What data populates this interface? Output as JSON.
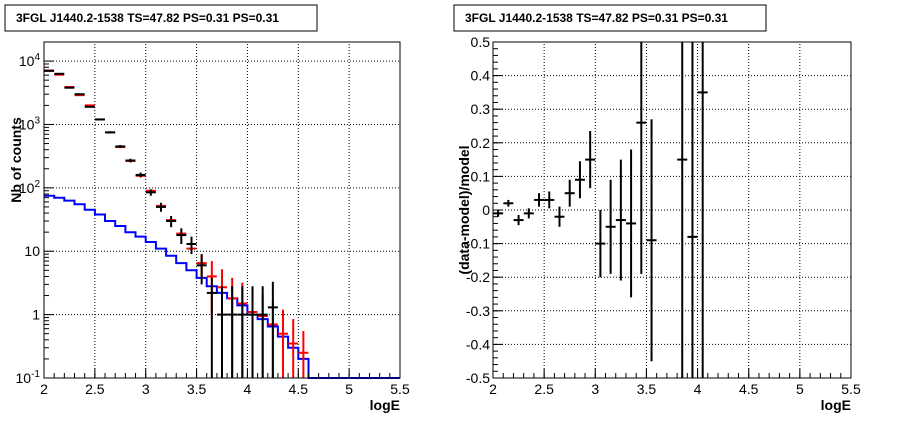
{
  "chart_data": [
    {
      "type": "line",
      "title": "3FGL J1440.2-1538 TS=47.82 PS=0.31 PS=0.31",
      "xlabel": "logE",
      "ylabel": "Nb of counts",
      "xlim": [
        2,
        5.5
      ],
      "ylim": [
        0.1,
        20000
      ],
      "yscale": "log",
      "grid": true,
      "x_ticks": [
        "2",
        "2.5",
        "3",
        "3.5",
        "4",
        "4.5",
        "5",
        "5.5"
      ],
      "y_ticks": [
        "10^{-1}",
        "1",
        "10",
        "10^{2}",
        "10^{3}",
        "10^{4}"
      ],
      "series": [
        {
          "role": "data",
          "color": "#000000",
          "x": [
            2.05,
            2.15,
            2.25,
            2.35,
            2.45,
            2.55,
            2.65,
            2.75,
            2.85,
            2.95,
            3.05,
            3.15,
            3.25,
            3.35,
            3.45,
            3.55,
            3.65,
            3.75,
            3.85,
            3.95,
            4.05,
            4.15,
            4.25
          ],
          "y": [
            7000,
            6300,
            3800,
            3000,
            1900,
            1200,
            750,
            450,
            270,
            160,
            85,
            50,
            30,
            18,
            13,
            6,
            2.2,
            1,
            1,
            1,
            1,
            1,
            1.3
          ],
          "err_lo": [
            100,
            90,
            70,
            60,
            50,
            40,
            30,
            25,
            18,
            14,
            10,
            8,
            6,
            5,
            4,
            3,
            2.19,
            0.99,
            0.99,
            0.99,
            0.99,
            0.99,
            1.29
          ],
          "err_hi": [
            100,
            90,
            70,
            60,
            50,
            40,
            30,
            25,
            18,
            14,
            10,
            8,
            6,
            5,
            4,
            3,
            1.6,
            1.8,
            1.8,
            1.8,
            1.8,
            1.8,
            2.0
          ]
        },
        {
          "role": "model",
          "color": "#ff0000",
          "x": [
            2.05,
            2.15,
            2.25,
            2.35,
            2.45,
            2.55,
            2.65,
            2.75,
            2.85,
            2.95,
            3.05,
            3.15,
            3.25,
            3.35,
            3.45,
            3.55,
            3.65,
            3.75,
            3.85,
            3.95,
            4.05,
            4.15,
            4.25,
            4.35,
            4.45,
            4.55
          ],
          "y": [
            7100,
            6100,
            3900,
            2900,
            2000,
            1200,
            750,
            440,
            265,
            155,
            90,
            52,
            31,
            19,
            11,
            6.5,
            4,
            2.7,
            1.8,
            1.5,
            1.1,
            0.95,
            0.7,
            0.5,
            0.35,
            0.25
          ],
          "err": [
            0.0,
            0.0,
            0.0,
            0.0,
            0.0,
            0.0,
            0.0,
            0.0,
            0.0,
            0.0,
            0.0,
            0.0,
            0.0,
            0.0,
            0.0,
            2.5,
            3,
            2.5,
            2,
            1.7,
            1.3,
            1.2,
            0.9,
            0.7,
            0.5,
            0.3
          ]
        },
        {
          "role": "background",
          "color": "#0000ff",
          "edges": [
            2.0,
            2.1,
            2.2,
            2.3,
            2.4,
            2.5,
            2.6,
            2.7,
            2.8,
            2.9,
            3.0,
            3.1,
            3.2,
            3.3,
            3.4,
            3.5,
            3.6,
            3.7,
            3.8,
            3.9,
            4.0,
            4.1,
            4.2,
            4.3,
            4.4,
            4.5,
            4.6,
            5.5
          ],
          "y": [
            75,
            70,
            63,
            55,
            45,
            38,
            30,
            25,
            20,
            17,
            14,
            11,
            8.5,
            6.5,
            5,
            3.8,
            2.8,
            2.2,
            1.8,
            1.4,
            1.0,
            0.85,
            0.65,
            0.45,
            0.3,
            0.2,
            0.1
          ]
        }
      ]
    },
    {
      "type": "scatter",
      "title": "3FGL J1440.2-1538 TS=47.82 PS=0.31 PS=0.31",
      "xlabel": "logE",
      "ylabel": "(data-model)/model",
      "xlim": [
        2,
        5.5
      ],
      "ylim": [
        -0.5,
        0.5
      ],
      "grid": true,
      "x_ticks": [
        "2",
        "2.5",
        "3",
        "3.5",
        "4",
        "4.5",
        "5",
        "5.5"
      ],
      "y_ticks": [
        "-0.5",
        "-0.4",
        "-0.3",
        "-0.2",
        "-0.1",
        "0",
        "0.1",
        "0.2",
        "0.3",
        "0.4",
        "0.5"
      ],
      "series": [
        {
          "color": "#000000",
          "x": [
            2.05,
            2.15,
            2.25,
            2.35,
            2.45,
            2.55,
            2.65,
            2.75,
            2.85,
            2.95,
            3.05,
            3.15,
            3.25,
            3.35,
            3.45,
            3.55,
            3.85,
            3.95,
            4.05
          ],
          "y": [
            -0.01,
            0.02,
            -0.03,
            -0.01,
            0.03,
            0.03,
            -0.02,
            0.05,
            0.09,
            0.15,
            -0.1,
            -0.05,
            -0.03,
            -0.04,
            0.26,
            -0.09,
            0.15,
            -0.08,
            0.35
          ],
          "err": [
            0.01,
            0.01,
            0.015,
            0.015,
            0.02,
            0.025,
            0.03,
            0.04,
            0.055,
            0.085,
            0.1,
            0.14,
            0.18,
            0.22,
            0.45,
            0.36,
            0.7,
            0.9,
            1.0
          ]
        }
      ]
    }
  ]
}
